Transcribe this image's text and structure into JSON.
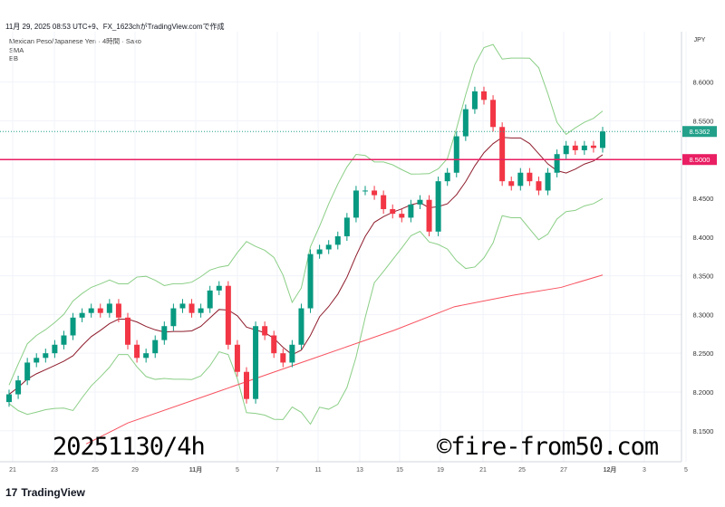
{
  "header": "11月 29, 2025 08:53 UTC+9、FX_1623chがTradingView.comで作成",
  "legend": {
    "symbol": "Mexican Peso/Japanese Yen · 4時間 · Saxo",
    "sma": "SMA",
    "bb": "BB"
  },
  "watermark": {
    "left": "20251130/4h",
    "right": "©fire-from50.com"
  },
  "brand": "TradingView",
  "colors": {
    "up": "#089981",
    "down": "#f23645",
    "sma": "#f7525f",
    "bb_mid": "#8e1c2c",
    "bb_band": "#8bcf86",
    "hline": "#e91e63",
    "last": "#22a08a"
  },
  "chart_data": {
    "type": "candlestick",
    "currency": "JPY",
    "ylim": [
      8.11,
      8.665
    ],
    "y_ticks": [
      "8.6000",
      "8.5500",
      "8.4500",
      "8.4000",
      "8.3500",
      "8.3000",
      "8.2500",
      "8.2000",
      "8.1500"
    ],
    "x_ticks": [
      "21",
      "23",
      "25",
      "29",
      "11月",
      "5",
      "7",
      "11",
      "13",
      "15",
      "19",
      "21",
      "25",
      "27",
      "12月",
      "3",
      "5"
    ],
    "last_price": "8.5362",
    "hline_price": "8.5000",
    "closes": [
      8.197,
      8.215,
      8.238,
      8.244,
      8.25,
      8.261,
      8.273,
      8.296,
      8.302,
      8.308,
      8.302,
      8.314,
      8.296,
      8.261,
      8.244,
      8.25,
      8.267,
      8.285,
      8.308,
      8.314,
      8.302,
      8.308,
      8.331,
      8.337,
      8.261,
      8.226,
      8.191,
      8.285,
      8.273,
      8.25,
      8.238,
      8.261,
      8.308,
      8.378,
      8.384,
      8.39,
      8.401,
      8.425,
      8.46,
      8.46,
      8.454,
      8.436,
      8.43,
      8.425,
      8.442,
      8.448,
      8.407,
      8.472,
      8.483,
      8.53,
      8.565,
      8.588,
      8.577,
      8.542,
      8.472,
      8.466,
      8.483,
      8.472,
      8.46,
      8.483,
      8.507,
      8.518,
      8.512,
      8.518,
      8.515,
      8.5362
    ],
    "sma_series": [
      [
        0.13,
        8.133
      ],
      [
        0.2,
        8.16
      ],
      [
        0.35,
        8.2
      ],
      [
        0.5,
        8.24
      ],
      [
        0.65,
        8.28
      ],
      [
        0.75,
        8.31
      ],
      [
        0.85,
        8.325
      ],
      [
        0.93,
        8.335
      ],
      [
        1,
        8.351
      ]
    ]
  }
}
